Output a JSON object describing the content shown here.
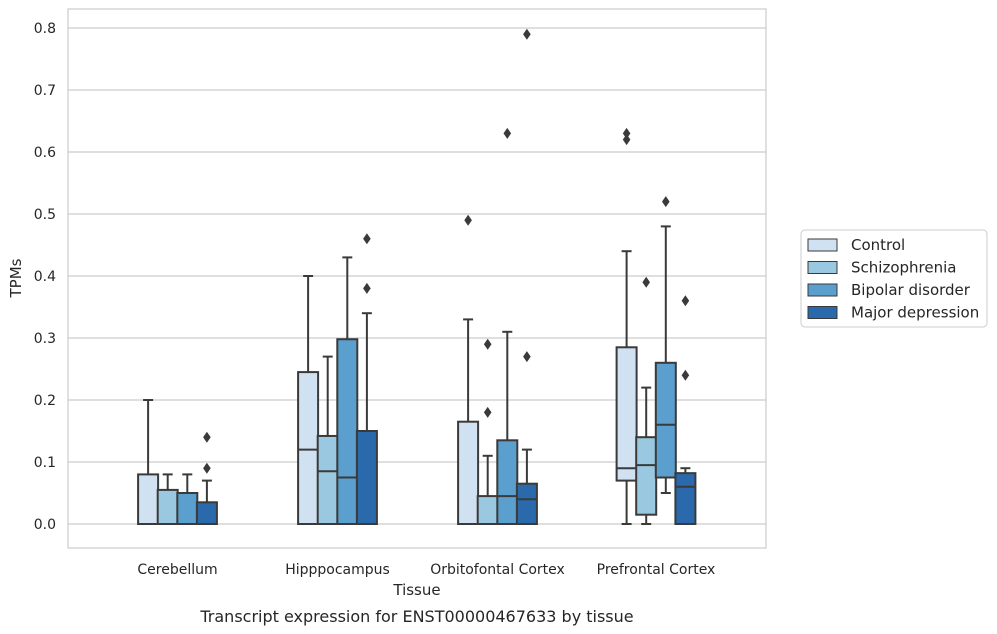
{
  "caption": "Transcript expression for ENST00000467633 by tissue",
  "chart_data": {
    "type": "box",
    "xlabel": "Tissue",
    "ylabel": "TPMs",
    "ylim": [
      -0.04,
      0.83
    ],
    "yticks": [
      "0.0",
      "0.1",
      "0.2",
      "0.3",
      "0.4",
      "0.5",
      "0.6",
      "0.7",
      "0.8"
    ],
    "grid": true,
    "legend_position": "right",
    "categories": [
      "Cerebellum",
      "Hipppocampus",
      "Orbitofontal Cortex",
      "Prefrontal Cortex"
    ],
    "series": [
      {
        "name": "Control",
        "color": "#d0e1f2",
        "boxes": [
          {
            "whislo": 0.0,
            "q1": 0.0,
            "med": 0.0,
            "q3": 0.08,
            "whishi": 0.2,
            "fliers": []
          },
          {
            "whislo": 0.0,
            "q1": 0.0,
            "med": 0.12,
            "q3": 0.245,
            "whishi": 0.4,
            "fliers": []
          },
          {
            "whislo": 0.0,
            "q1": 0.0,
            "med": 0.0,
            "q3": 0.165,
            "whishi": 0.33,
            "fliers": [
              0.49
            ]
          },
          {
            "whislo": 0.0,
            "q1": 0.07,
            "med": 0.09,
            "q3": 0.285,
            "whishi": 0.44,
            "fliers": [
              0.62,
              0.63
            ]
          }
        ]
      },
      {
        "name": "Schizophrenia",
        "color": "#9ac8e0",
        "boxes": [
          {
            "whislo": 0.0,
            "q1": 0.0,
            "med": 0.0,
            "q3": 0.055,
            "whishi": 0.08,
            "fliers": []
          },
          {
            "whislo": 0.0,
            "q1": 0.0,
            "med": 0.085,
            "q3": 0.142,
            "whishi": 0.27,
            "fliers": []
          },
          {
            "whislo": 0.0,
            "q1": 0.0,
            "med": 0.0,
            "q3": 0.045,
            "whishi": 0.11,
            "fliers": [
              0.18,
              0.29
            ]
          },
          {
            "whislo": 0.0,
            "q1": 0.015,
            "med": 0.095,
            "q3": 0.14,
            "whishi": 0.22,
            "fliers": [
              0.39
            ]
          }
        ]
      },
      {
        "name": "Bipolar disorder",
        "color": "#5a9fcd",
        "boxes": [
          {
            "whislo": 0.0,
            "q1": 0.0,
            "med": 0.0,
            "q3": 0.05,
            "whishi": 0.08,
            "fliers": []
          },
          {
            "whislo": 0.0,
            "q1": 0.0,
            "med": 0.075,
            "q3": 0.298,
            "whishi": 0.43,
            "fliers": []
          },
          {
            "whislo": 0.0,
            "q1": 0.0,
            "med": 0.045,
            "q3": 0.135,
            "whishi": 0.31,
            "fliers": [
              0.63
            ]
          },
          {
            "whislo": 0.05,
            "q1": 0.075,
            "med": 0.16,
            "q3": 0.26,
            "whishi": 0.48,
            "fliers": [
              0.52
            ]
          }
        ]
      },
      {
        "name": "Major depression",
        "color": "#2a6aac",
        "boxes": [
          {
            "whislo": 0.0,
            "q1": 0.0,
            "med": 0.0,
            "q3": 0.035,
            "whishi": 0.07,
            "fliers": [
              0.09,
              0.14
            ]
          },
          {
            "whislo": 0.0,
            "q1": 0.0,
            "med": 0.0,
            "q3": 0.15,
            "whishi": 0.34,
            "fliers": [
              0.38,
              0.46
            ]
          },
          {
            "whislo": 0.0,
            "q1": 0.0,
            "med": 0.04,
            "q3": 0.065,
            "whishi": 0.12,
            "fliers": [
              0.27,
              0.79
            ]
          },
          {
            "whislo": 0.0,
            "q1": 0.0,
            "med": 0.06,
            "q3": 0.082,
            "whishi": 0.09,
            "fliers": [
              0.24,
              0.36
            ]
          }
        ]
      }
    ]
  }
}
